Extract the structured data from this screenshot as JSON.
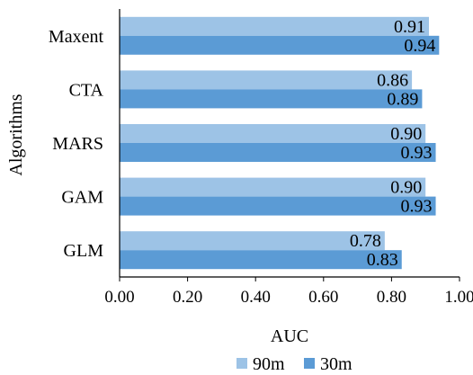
{
  "chart_data": {
    "type": "bar",
    "orientation": "horizontal",
    "categories": [
      "Maxent",
      "CTA",
      "MARS",
      "GAM",
      "GLM"
    ],
    "series": [
      {
        "name": "90m",
        "color": "#9dc3e6",
        "values": [
          0.91,
          0.86,
          0.9,
          0.9,
          0.78
        ],
        "labels": [
          "0.91",
          "0.86",
          "0.90",
          "0.90",
          "0.78"
        ]
      },
      {
        "name": "30m",
        "color": "#5b9bd5",
        "values": [
          0.94,
          0.89,
          0.93,
          0.93,
          0.83
        ],
        "labels": [
          "0.94",
          "0.89",
          "0.93",
          "0.93",
          "0.83"
        ]
      }
    ],
    "xlabel": "AUC",
    "ylabel": "Algorithms",
    "xlim": [
      0,
      1
    ],
    "xticks": [
      "0.00",
      "0.20",
      "0.40",
      "0.60",
      "0.80",
      "1.00"
    ],
    "grid": false,
    "legend_position": "bottom"
  }
}
